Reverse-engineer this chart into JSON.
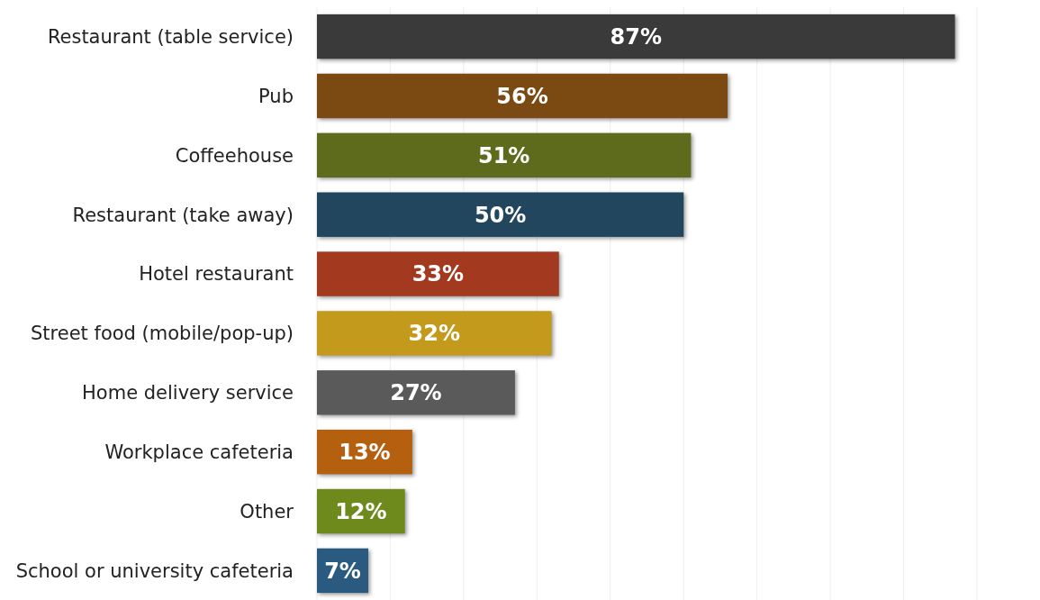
{
  "chart_data": {
    "type": "bar",
    "orientation": "horizontal",
    "categories": [
      "Restaurant (table service)",
      "Pub",
      "Coffeehouse",
      "Restaurant (take away)",
      "Hotel restaurant",
      "Street food (mobile/pop-up)",
      "Home delivery service",
      "Workplace cafeteria",
      "Other",
      "School or university cafeteria"
    ],
    "values": [
      87,
      56,
      51,
      50,
      33,
      32,
      27,
      13,
      12,
      7
    ],
    "value_labels": [
      "87%",
      "56%",
      "51%",
      "50%",
      "33%",
      "32%",
      "27%",
      "13%",
      "12%",
      "7%"
    ],
    "colors": [
      "#3a3a3a",
      "#7a4a12",
      "#5e6a1c",
      "#23465f",
      "#a33a20",
      "#c49a1c",
      "#5a5a5a",
      "#b5600f",
      "#6f8a1c",
      "#2a5a80"
    ],
    "xlim": [
      0,
      90
    ],
    "xticks": [
      {
        "value": 0,
        "label": null
      },
      {
        "value": 10,
        "label": null
      },
      {
        "value": 20,
        "label": null
      },
      {
        "value": 30,
        "label": null
      },
      {
        "value": 40,
        "label": null
      },
      {
        "value": 50,
        "label": null
      },
      {
        "value": 60,
        "label": null
      },
      {
        "value": 70,
        "label": null
      },
      {
        "value": 80,
        "label": null
      },
      {
        "value": 90,
        "label": null
      }
    ],
    "grid": "x",
    "tick_labels": "y"
  }
}
